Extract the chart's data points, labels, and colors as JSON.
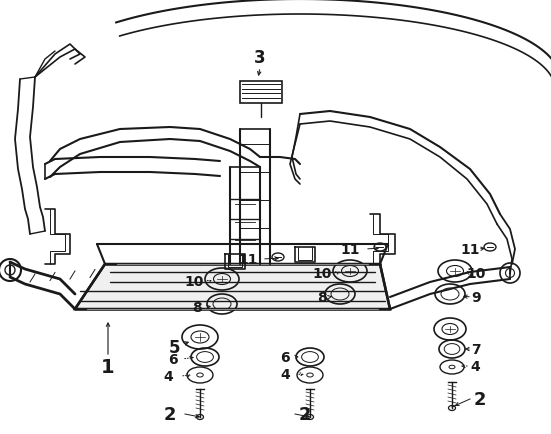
{
  "background_color": "#ffffff",
  "line_color": "#1a1a1a",
  "text_color": "#1a1a1a",
  "fig_width": 5.51,
  "fig_height": 4.35,
  "dpi": 100
}
